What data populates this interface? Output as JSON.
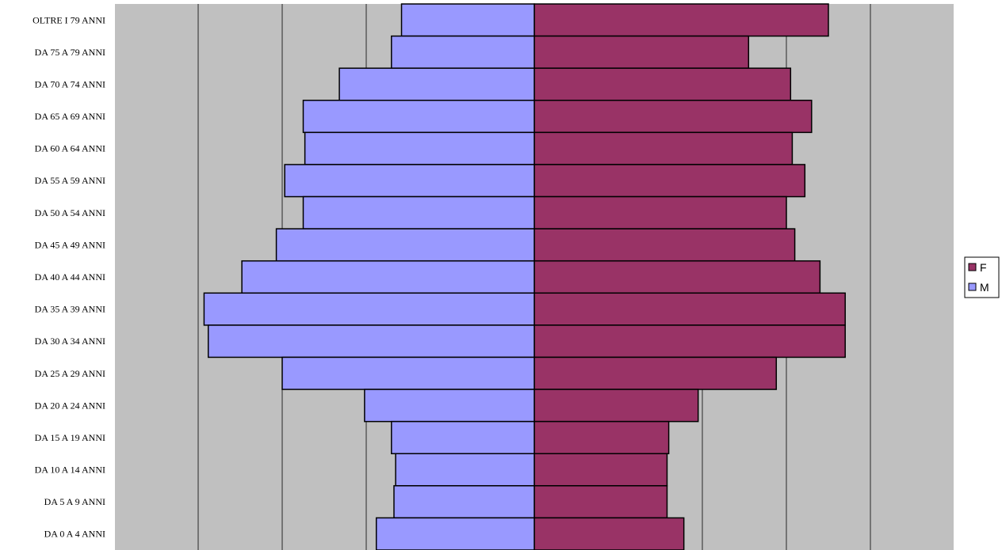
{
  "chart_data": {
    "type": "bar",
    "orientation": "horizontal",
    "layout": "population-pyramid",
    "categories": [
      "OLTRE I 79 ANNI",
      "DA 75 A 79 ANNI",
      "DA 70 A 74 ANNI",
      "DA 65 A 69 ANNI",
      "DA 60 A 64 ANNI",
      "DA 55 A 59 ANNI",
      "DA 50 A 54 ANNI",
      "DA 45 A 49 ANNI",
      "DA 40 A 44 ANNI",
      "DA 35 A 39 ANNI",
      "DA 30 A 34 ANNI",
      "DA 25 A 29 ANNI",
      "DA 20 A 24 ANNI",
      "DA 15 A 19 ANNI",
      "DA 10 A 14 ANNI",
      "DA 5 A 9 ANNI",
      "DA 0 A 4 ANNI"
    ],
    "series": [
      {
        "name": "F",
        "color": "#993366",
        "values": [
          3.5,
          2.55,
          3.05,
          3.3,
          3.07,
          3.22,
          3.0,
          3.1,
          3.4,
          3.7,
          3.7,
          2.88,
          1.95,
          1.6,
          1.58,
          1.58,
          1.78
        ]
      },
      {
        "name": "M",
        "color": "#9999ff",
        "values": [
          -1.58,
          -1.7,
          -2.32,
          -2.75,
          -2.73,
          -2.97,
          -2.75,
          -3.07,
          -3.48,
          -3.93,
          -3.88,
          -3.0,
          -2.02,
          -1.7,
          -1.65,
          -1.67,
          -1.88
        ]
      }
    ],
    "xlim": [
      -5,
      5
    ],
    "grid": true,
    "legend": "right",
    "xlabel": "",
    "ylabel": "",
    "title": ""
  }
}
